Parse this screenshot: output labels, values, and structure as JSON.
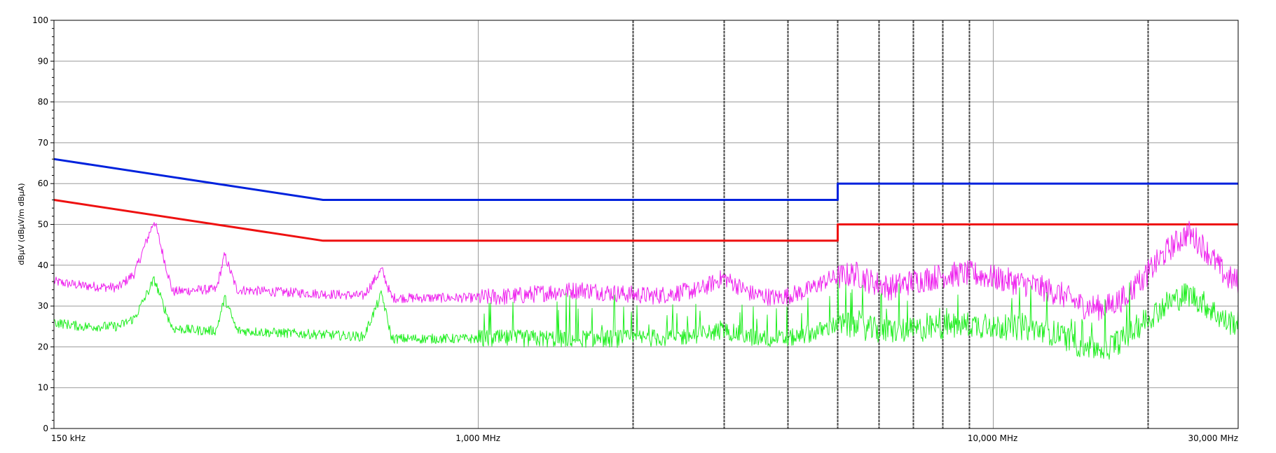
{
  "chart_data": {
    "type": "line",
    "title": "",
    "x_scale": "log",
    "xlim_mhz": [
      0.15,
      30
    ],
    "ylim": [
      0,
      100
    ],
    "grid": true,
    "ylabel": "dBµV (dBµV/m dBµA)",
    "x_tick_labels": [
      {
        "value": 0.15,
        "label": "150 kHz"
      },
      {
        "value": 1,
        "label": "1,000 MHz"
      },
      {
        "value": 10,
        "label": "10,000 MHz"
      },
      {
        "value": 30,
        "label": "30,000 MHz"
      }
    ],
    "x_gridlines_mhz": [
      1,
      2,
      3,
      4,
      5,
      6,
      7,
      8,
      9,
      10,
      20
    ],
    "x_gridlines_dark_mhz": [
      2,
      3,
      4,
      5,
      6,
      7,
      8,
      9,
      20
    ],
    "y_ticks": [
      0,
      10,
      20,
      30,
      40,
      50,
      60,
      70,
      80,
      90,
      100
    ],
    "series": [
      {
        "color": "#0022dd",
        "width": 3,
        "points": [
          [
            0.15,
            66
          ],
          [
            0.5,
            56
          ],
          [
            5,
            56
          ],
          [
            5,
            60
          ],
          [
            30,
            60
          ]
        ]
      },
      {
        "color": "#ee1111",
        "width": 3,
        "points": [
          [
            0.15,
            56
          ],
          [
            0.5,
            46
          ],
          [
            5,
            46
          ],
          [
            5,
            50
          ],
          [
            30,
            50
          ]
        ]
      },
      {
        "color": "#ee22ee",
        "width": 1,
        "noisy": true,
        "points": [
          [
            0.15,
            36
          ],
          [
            0.17,
            35
          ],
          [
            0.2,
            34.5
          ],
          [
            0.215,
            38
          ],
          [
            0.235,
            51
          ],
          [
            0.245,
            42
          ],
          [
            0.255,
            33.5
          ],
          [
            0.29,
            34
          ],
          [
            0.31,
            34
          ],
          [
            0.322,
            42.5
          ],
          [
            0.34,
            34
          ],
          [
            0.4,
            33.5
          ],
          [
            0.5,
            33
          ],
          [
            0.6,
            32.5
          ],
          [
            0.65,
            39
          ],
          [
            0.68,
            32
          ],
          [
            0.8,
            32
          ],
          [
            1.0,
            32
          ],
          [
            1.2,
            32.5
          ],
          [
            1.4,
            33.5
          ],
          [
            1.6,
            34
          ],
          [
            1.9,
            33
          ],
          [
            2.2,
            32.5
          ],
          [
            2.7,
            34
          ],
          [
            3.0,
            37
          ],
          [
            3.4,
            33
          ],
          [
            3.8,
            32
          ],
          [
            4.3,
            33.5
          ],
          [
            4.8,
            36.5
          ],
          [
            5.4,
            38
          ],
          [
            5.8,
            36
          ],
          [
            6.3,
            34.5
          ],
          [
            7.0,
            36
          ],
          [
            8.0,
            37.5
          ],
          [
            9.0,
            38
          ],
          [
            10.0,
            37
          ],
          [
            12.0,
            35
          ],
          [
            13.5,
            33
          ],
          [
            15.0,
            30
          ],
          [
            16.5,
            29.5
          ],
          [
            18.0,
            32
          ],
          [
            20.0,
            38
          ],
          [
            22.0,
            44
          ],
          [
            24.0,
            48
          ],
          [
            25.5,
            45
          ],
          [
            27.0,
            41
          ],
          [
            28.5,
            37
          ],
          [
            30.0,
            36
          ]
        ]
      },
      {
        "color": "#22ee22",
        "width": 1,
        "noisy": true,
        "points": [
          [
            0.15,
            26
          ],
          [
            0.17,
            25
          ],
          [
            0.2,
            25
          ],
          [
            0.215,
            27
          ],
          [
            0.235,
            36.5
          ],
          [
            0.245,
            30
          ],
          [
            0.255,
            24.5
          ],
          [
            0.29,
            24
          ],
          [
            0.31,
            24
          ],
          [
            0.322,
            32
          ],
          [
            0.34,
            24
          ],
          [
            0.4,
            23.5
          ],
          [
            0.5,
            23
          ],
          [
            0.6,
            22.5
          ],
          [
            0.65,
            33
          ],
          [
            0.68,
            22
          ],
          [
            0.8,
            22
          ],
          [
            1.0,
            22
          ],
          [
            1.5,
            22
          ],
          [
            2.0,
            22
          ],
          [
            2.5,
            22.5
          ],
          [
            3.0,
            24
          ],
          [
            3.5,
            22
          ],
          [
            4.0,
            22
          ],
          [
            4.5,
            23.5
          ],
          [
            5.0,
            25.5
          ],
          [
            5.5,
            25
          ],
          [
            6.0,
            24
          ],
          [
            7.0,
            24
          ],
          [
            8.0,
            25
          ],
          [
            9.0,
            25.5
          ],
          [
            10.0,
            25
          ],
          [
            12.0,
            24.5
          ],
          [
            13.5,
            23
          ],
          [
            15.0,
            20
          ],
          [
            16.5,
            19.5
          ],
          [
            18.0,
            22
          ],
          [
            20.0,
            27
          ],
          [
            22.0,
            31
          ],
          [
            24.0,
            33
          ],
          [
            25.5,
            31
          ],
          [
            27.0,
            28.5
          ],
          [
            28.5,
            26
          ],
          [
            30.0,
            26
          ]
        ]
      }
    ]
  }
}
